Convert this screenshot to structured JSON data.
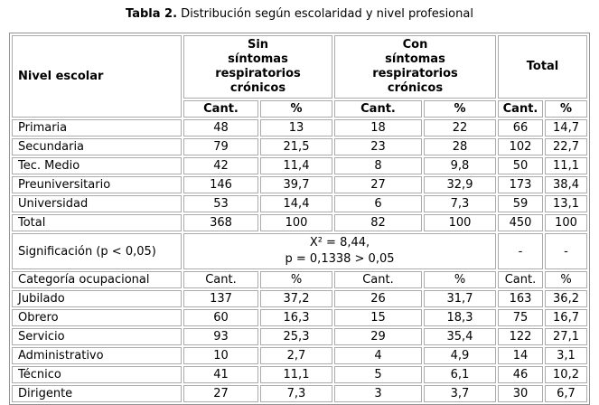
{
  "title": {
    "bold": "Tabla 2.",
    "rest": " Distribución según escolaridad y nivel profesional"
  },
  "table": {
    "nivel_header": "Nivel escolar",
    "group_headers": [
      "Sin\nsíntomas\nrespiratorios\ncrónicos",
      "Con\nsíntomas\nrespiratorios\ncrónicos",
      "Total"
    ],
    "sub_headers": [
      "Cant.",
      "%",
      "Cant.",
      "%",
      "Cant.",
      "%"
    ],
    "escolaridad_rows": [
      [
        "Primaria",
        "48",
        "13",
        "18",
        "22",
        "66",
        "14,7"
      ],
      [
        "Secundaria",
        "79",
        "21,5",
        "23",
        "28",
        "102",
        "22,7"
      ],
      [
        "Tec. Medio",
        "42",
        "11,4",
        "8",
        "9,8",
        "50",
        "11,1"
      ],
      [
        "Preuniversitario",
        "146",
        "39,7",
        "27",
        "32,9",
        "173",
        "38,4"
      ],
      [
        "Universidad",
        "53",
        "14,4",
        "6",
        "7,3",
        "59",
        "13,1"
      ],
      [
        "Total",
        "368",
        "100",
        "82",
        "100",
        "450",
        "100"
      ]
    ],
    "significacion": {
      "label": "Significación (p < 0,05)",
      "stat_line1": "X² = 8,44,",
      "stat_line2": "p = 0,1338 > 0,05",
      "total_cant": "-",
      "total_pct": "-"
    },
    "ocupacional_header_row": [
      "Categoría ocupacional",
      "Cant.",
      "%",
      "Cant.",
      "%",
      "Cant.",
      "%"
    ],
    "ocupacional_rows": [
      [
        "Jubilado",
        "137",
        "37,2",
        "26",
        "31,7",
        "163",
        "36,2"
      ],
      [
        "Obrero",
        "60",
        "16,3",
        "15",
        "18,3",
        "75",
        "16,7"
      ],
      [
        "Servicio",
        "93",
        "25,3",
        "29",
        "35,4",
        "122",
        "27,1"
      ],
      [
        "Administrativo",
        "10",
        "2,7",
        "4",
        "4,9",
        "14",
        "3,1"
      ],
      [
        "Técnico",
        "41",
        "11,1",
        "5",
        "6,1",
        "46",
        "10,2"
      ],
      [
        "Dirigente",
        "27",
        "7,3",
        "3",
        "3,7",
        "30",
        "6,7"
      ]
    ]
  }
}
